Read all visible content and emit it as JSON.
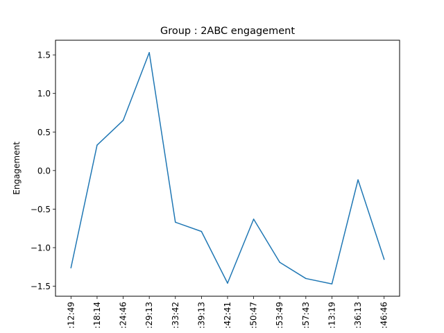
{
  "chart_data": {
    "type": "line",
    "title": "Group : 2ABC engagement",
    "xlabel": "",
    "ylabel": "Engagement",
    "categories": [
      ":12:49",
      ":18:14",
      ":24:46",
      ":29:13",
      ":33:42",
      ":39:13",
      ":42:41",
      ":50:47",
      ":53:49",
      ":57:43",
      ":13:19",
      ":36:13",
      ":46:46"
    ],
    "series": [
      {
        "values": [
          -1.26,
          0.33,
          0.65,
          1.53,
          -0.67,
          -0.79,
          -1.46,
          -0.63,
          -1.19,
          -1.4,
          -1.47,
          -0.12,
          -1.15
        ],
        "color": "#1f77b4"
      }
    ],
    "ylim": [
      -1.63,
      1.69
    ],
    "yticks": [
      -1.5,
      -1.0,
      -0.5,
      0.0,
      0.5,
      1.0,
      1.5
    ],
    "ytick_labels": [
      "−1.5",
      "−1.0",
      "−0.5",
      "0.0",
      "0.5",
      "1.0",
      "1.5"
    ],
    "grid": false,
    "legend": "none"
  }
}
